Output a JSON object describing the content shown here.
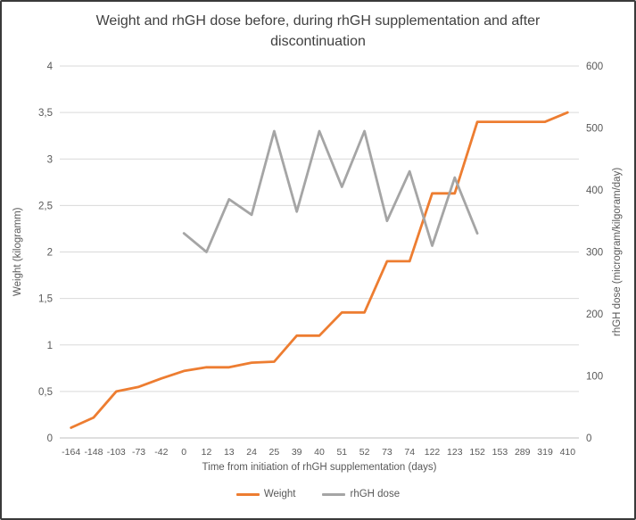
{
  "chart_data": {
    "type": "line",
    "title": "Weight and rhGH dose before, during rhGH supplementation and after discontinuation",
    "categories": [
      "-164",
      "-148",
      "-103",
      "-73",
      "-42",
      "0",
      "12",
      "13",
      "24",
      "25",
      "39",
      "40",
      "51",
      "52",
      "73",
      "74",
      "122",
      "123",
      "152",
      "153",
      "289",
      "319",
      "410"
    ],
    "series": [
      {
        "name": "Weight",
        "axis": "left",
        "color": "#ED7D31",
        "values": [
          0.11,
          0.22,
          0.5,
          0.55,
          0.64,
          0.72,
          0.76,
          0.76,
          0.81,
          0.82,
          1.1,
          1.1,
          1.35,
          1.35,
          1.9,
          1.9,
          2.63,
          2.63,
          3.4,
          3.4,
          3.4,
          3.4,
          3.5
        ]
      },
      {
        "name": "rhGH dose",
        "axis": "right",
        "color": "#A5A5A5",
        "values": [
          null,
          null,
          null,
          null,
          null,
          330,
          300,
          385,
          360,
          495,
          365,
          495,
          405,
          495,
          350,
          430,
          310,
          420,
          330,
          null,
          null,
          null,
          null
        ]
      }
    ],
    "left_axis": {
      "label": "Weight (kilogramm)",
      "min": 0,
      "max": 4,
      "tick_values": [
        0,
        0.5,
        1,
        1.5,
        2,
        2.5,
        3,
        3.5,
        4
      ],
      "tick_labels": [
        "0",
        "0,5",
        "1",
        "1,5",
        "2",
        "2,5",
        "3",
        "3,5",
        "4"
      ]
    },
    "right_axis": {
      "label": "rhGH dose (microgram/kilgoram/day)",
      "min": 0,
      "max": 600,
      "tick_values": [
        0,
        100,
        200,
        300,
        400,
        500,
        600
      ],
      "tick_labels": [
        "0",
        "100",
        "200",
        "300",
        "400",
        "500",
        "600"
      ]
    },
    "x_axis": {
      "label": "Time from initiation of rhGH supplementation (days)"
    },
    "legend": {
      "position": "bottom",
      "entries": [
        "Weight",
        "rhGH dose"
      ]
    },
    "grid": true,
    "colors": {
      "gridline": "#D9D9D9",
      "axis_line": "#BFBFBF",
      "tick_text": "#595959",
      "title_text": "#404040"
    }
  }
}
